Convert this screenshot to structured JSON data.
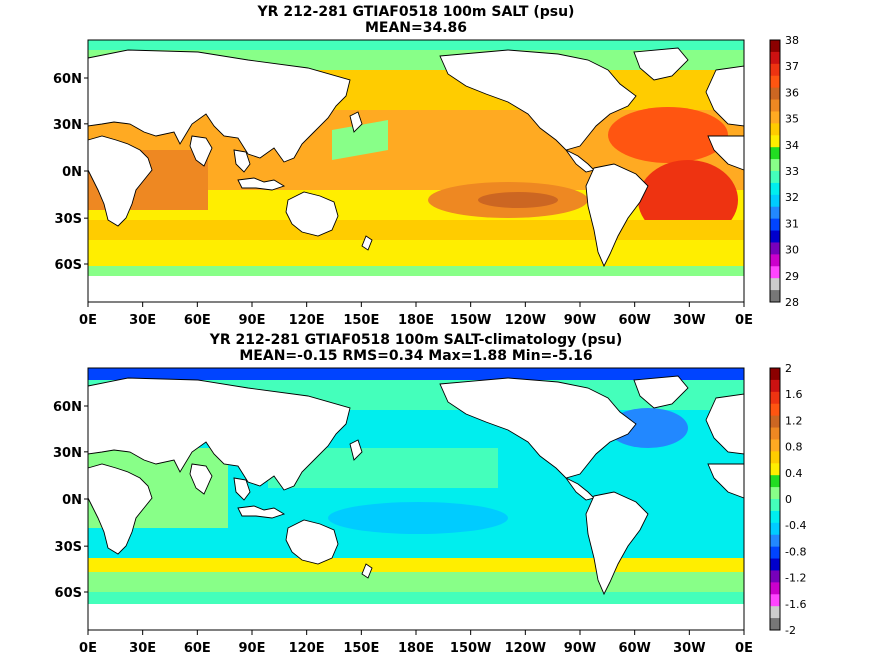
{
  "panels": [
    {
      "title": "YR 212-281 GTIAF0518 100m SALT (psu)",
      "subtitle": "MEAN=34.86",
      "lat_labels": [
        "60N",
        "30N",
        "0N",
        "30S",
        "60S"
      ],
      "lon_labels": [
        "0E",
        "30E",
        "60E",
        "90E",
        "120E",
        "150E",
        "180E",
        "150W",
        "120W",
        "90W",
        "60W",
        "30W",
        "0E"
      ],
      "colorbar": {
        "labels": [
          "38",
          "37",
          "36",
          "35",
          "34",
          "33",
          "32",
          "31",
          "30",
          "29",
          "28"
        ],
        "colors": [
          "#8b0000",
          "#cc1111",
          "#ee3311",
          "#ff5511",
          "#cc6622",
          "#ee8822",
          "#ffaa22",
          "#ffcc00",
          "#ffee00",
          "#22dd22",
          "#88ff88",
          "#44ffbb",
          "#00eeee",
          "#00ccff",
          "#2288ff",
          "#0044ff",
          "#0000cc",
          "#7700bb",
          "#cc00cc",
          "#ff44ff",
          "#cccccc",
          "#777777"
        ]
      }
    },
    {
      "title": "YR 212-281 GTIAF0518 100m SALT-climatology (psu)",
      "subtitle": "MEAN=-0.15   RMS=0.34   Max=1.88   Min=-5.16",
      "lat_labels": [
        "60N",
        "30N",
        "0N",
        "30S",
        "60S"
      ],
      "lon_labels": [
        "0E",
        "30E",
        "60E",
        "90E",
        "120E",
        "150E",
        "180E",
        "150W",
        "120W",
        "90W",
        "60W",
        "30W",
        "0E"
      ],
      "colorbar": {
        "labels": [
          "2",
          "1.6",
          "1.2",
          "0.8",
          "0.4",
          "0",
          "-0.4",
          "-0.8",
          "-1.2",
          "-1.6",
          "-2"
        ],
        "colors": [
          "#8b0000",
          "#cc1111",
          "#ee3311",
          "#ff5511",
          "#cc6622",
          "#ee8822",
          "#ffaa22",
          "#ffcc00",
          "#ffee00",
          "#22dd22",
          "#88ff88",
          "#44ffbb",
          "#00eeee",
          "#00ccff",
          "#2288ff",
          "#0044ff",
          "#0000cc",
          "#7700bb",
          "#cc00cc",
          "#ff44ff",
          "#cccccc",
          "#777777"
        ]
      }
    }
  ]
}
